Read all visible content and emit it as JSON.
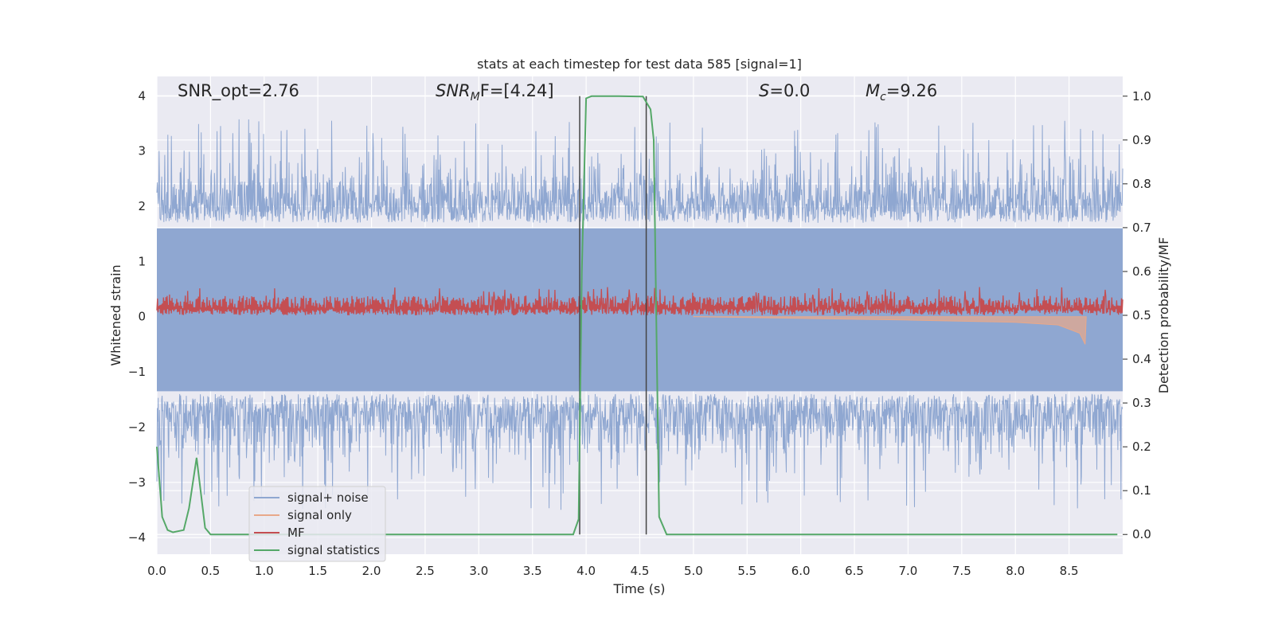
{
  "chart_data": {
    "type": "line",
    "title": "stats at each timestep for test data 585 [signal=1]",
    "xlabel": "Time (s)",
    "ylabel": "Whitened strain",
    "ylabel_right": "Detection probability/MF",
    "xlim": [
      0.0,
      9.0
    ],
    "ylim": [
      -4.3,
      4.35
    ],
    "ylim_right": [
      -0.045,
      1.045
    ],
    "x_ticks": [
      "0.0",
      "0.5",
      "1.0",
      "1.5",
      "2.0",
      "2.5",
      "3.0",
      "3.5",
      "4.0",
      "4.5",
      "5.0",
      "5.5",
      "6.0",
      "6.5",
      "7.0",
      "7.5",
      "8.0",
      "8.5"
    ],
    "y_ticks": [
      "4",
      "3",
      "2",
      "1",
      "0",
      "−1",
      "−2",
      "−3",
      "−4"
    ],
    "y_right_ticks": [
      "1.0",
      "0.9",
      "0.8",
      "0.7",
      "0.6",
      "0.5",
      "0.4",
      "0.3",
      "0.2",
      "0.1",
      "0.0"
    ],
    "annotations": {
      "snr_opt": "SNR_opt=2.76",
      "snr_mf_prefix": "SNR",
      "snr_mf_sub": "M",
      "snr_mf_rest": "F=[4.24]",
      "s_var": "S",
      "s_rest": "=0.0",
      "mc_var": "M",
      "mc_sub": "c",
      "mc_rest": "=9.26"
    },
    "vlines_x": [
      3.94,
      4.56
    ],
    "grid": true,
    "legend_position": "lower-left",
    "legend": [
      {
        "label": "signal+ noise",
        "color": "#8fa7d1"
      },
      {
        "label": "signal only",
        "color": "#e8a88a"
      },
      {
        "label": "MF",
        "color": "#c44e52"
      },
      {
        "label": "signal statistics",
        "color": "#55a868"
      }
    ],
    "series": [
      {
        "name": "signal+ noise",
        "color": "#8fa7d1",
        "axis": "left",
        "description_values": "noise band approx between -3.8 and 4.0 across full time range",
        "envelope": {
          "typical_upper": 2.4,
          "typical_lower": -2.2,
          "peak_upper": 4.0,
          "peak_lower": -3.8
        }
      },
      {
        "name": "signal only",
        "color": "#e8a88a",
        "axis": "left",
        "points": [
          [
            5.0,
            0.0
          ],
          [
            6.0,
            -0.03
          ],
          [
            7.0,
            -0.06
          ],
          [
            8.0,
            -0.1
          ],
          [
            8.4,
            -0.15
          ],
          [
            8.6,
            -0.3
          ],
          [
            8.65,
            -0.5
          ],
          [
            8.66,
            0.0
          ]
        ]
      },
      {
        "name": "MF",
        "color": "#c44e52",
        "axis": "right",
        "envelope": {
          "typical_upper": 0.54,
          "typical_lower": 0.5,
          "peak_upper": 0.565
        }
      },
      {
        "name": "signal statistics",
        "color": "#55a868",
        "axis": "right",
        "points": [
          [
            0.0,
            0.2
          ],
          [
            0.05,
            0.04
          ],
          [
            0.1,
            0.01
          ],
          [
            0.15,
            0.005
          ],
          [
            0.25,
            0.01
          ],
          [
            0.3,
            0.06
          ],
          [
            0.37,
            0.175
          ],
          [
            0.45,
            0.015
          ],
          [
            0.5,
            0.0
          ],
          [
            1.0,
            0.0
          ],
          [
            2.0,
            0.0
          ],
          [
            3.0,
            0.0
          ],
          [
            3.88,
            0.0
          ],
          [
            3.93,
            0.035
          ],
          [
            3.96,
            0.6
          ],
          [
            4.0,
            0.995
          ],
          [
            4.05,
            1.0
          ],
          [
            4.3,
            1.0
          ],
          [
            4.53,
            0.999
          ],
          [
            4.6,
            0.97
          ],
          [
            4.63,
            0.9
          ],
          [
            4.68,
            0.04
          ],
          [
            4.75,
            0.0
          ],
          [
            5.0,
            0.0
          ],
          [
            6.0,
            0.0
          ],
          [
            7.0,
            0.0
          ],
          [
            8.0,
            0.0
          ],
          [
            8.95,
            0.0
          ]
        ]
      }
    ]
  }
}
